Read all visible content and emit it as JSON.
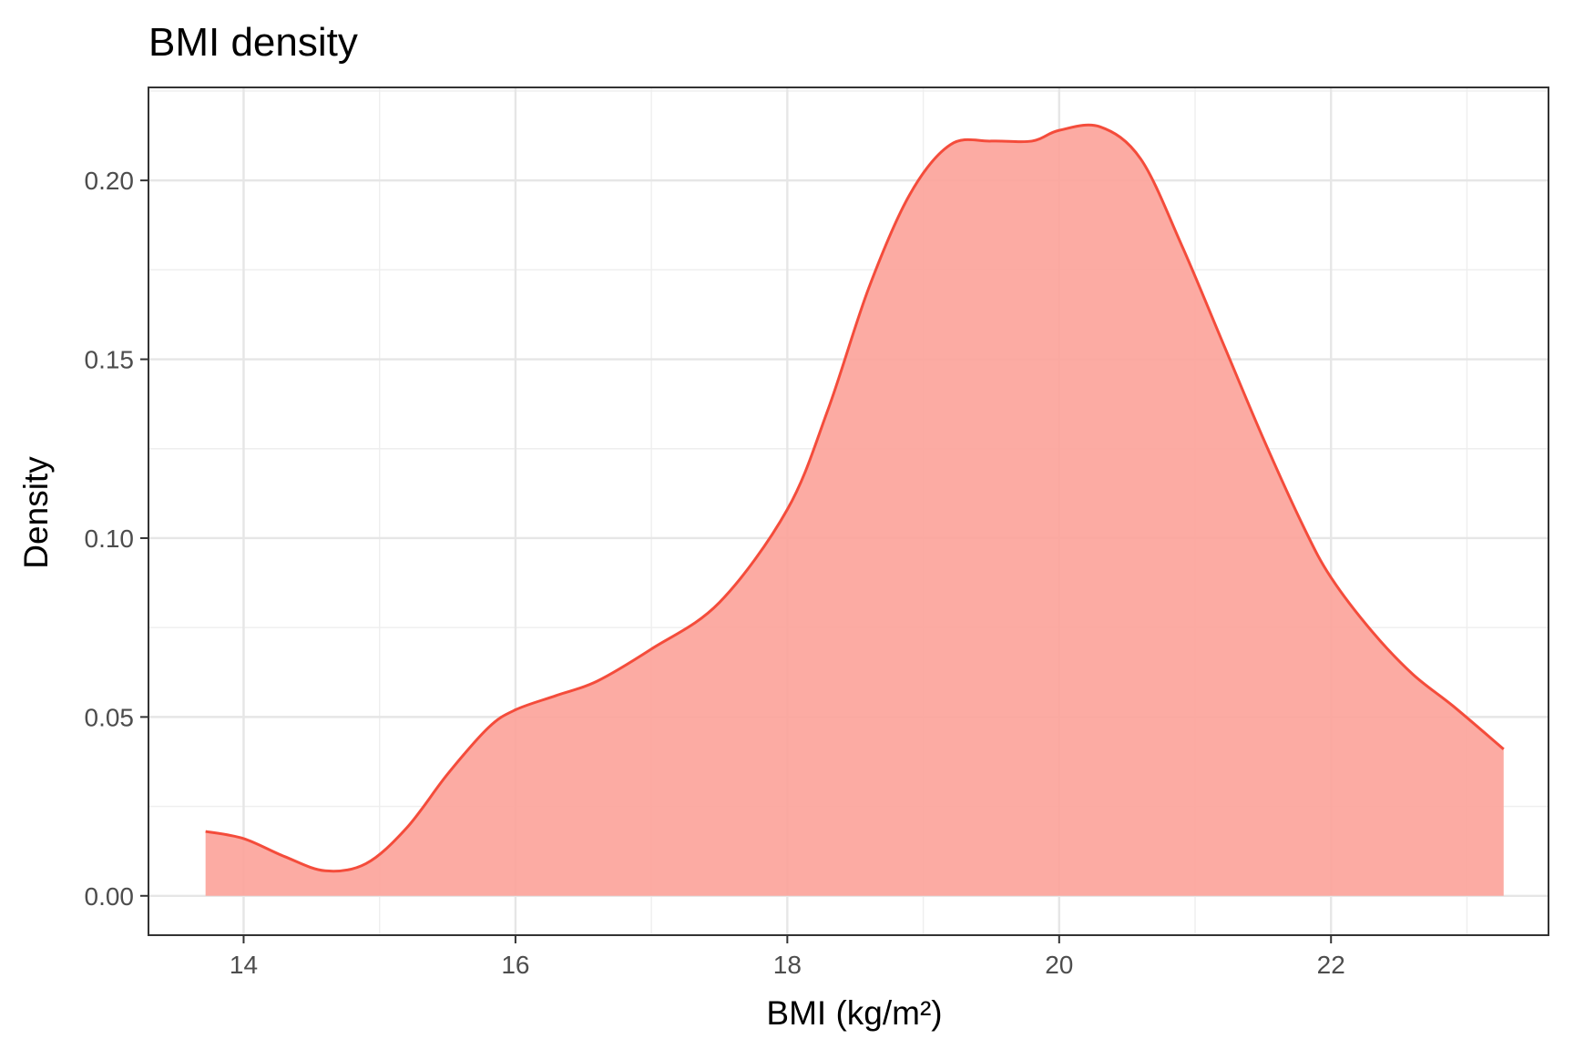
{
  "chart_data": {
    "type": "area",
    "title": "BMI density",
    "xlabel": "BMI (kg/m²)",
    "ylabel": "Density",
    "xlim": [
      13.3,
      23.6
    ],
    "ylim": [
      -0.011,
      0.226
    ],
    "x_ticks": [
      14,
      16,
      18,
      20,
      22
    ],
    "x_tick_labels": [
      "14",
      "16",
      "18",
      "20",
      "22"
    ],
    "y_ticks": [
      0.0,
      0.05,
      0.1,
      0.15,
      0.2
    ],
    "y_tick_labels": [
      "0.00",
      "0.05",
      "0.10",
      "0.15",
      "0.20"
    ],
    "grid": true,
    "legend": "none",
    "colors": {
      "line": "#f44c3b",
      "fill": "#fca49b",
      "panel_border": "#333333"
    },
    "series": [
      {
        "x": [
          13.72,
          14.0,
          14.3,
          14.6,
          14.9,
          15.2,
          15.5,
          15.8,
          16.0,
          16.3,
          16.6,
          17.0,
          17.5,
          18.0,
          18.3,
          18.6,
          18.9,
          19.2,
          19.5,
          19.8,
          20.0,
          20.3,
          20.6,
          20.9,
          21.2,
          21.5,
          21.8,
          22.0,
          22.3,
          22.6,
          22.9,
          23.27
        ],
        "y": [
          0.018,
          0.016,
          0.011,
          0.007,
          0.009,
          0.019,
          0.034,
          0.047,
          0.052,
          0.056,
          0.06,
          0.069,
          0.082,
          0.108,
          0.136,
          0.17,
          0.196,
          0.21,
          0.211,
          0.211,
          0.214,
          0.215,
          0.206,
          0.182,
          0.155,
          0.128,
          0.103,
          0.089,
          0.074,
          0.062,
          0.053,
          0.041
        ]
      }
    ]
  }
}
